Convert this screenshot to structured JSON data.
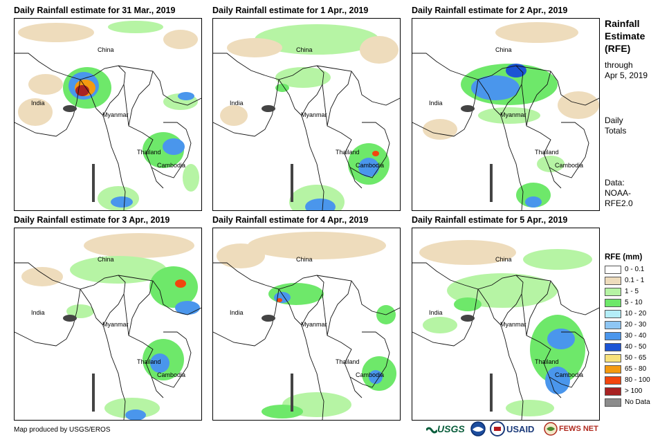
{
  "panels": [
    {
      "title": "Daily Rainfall estimate for 31 Mar., 2019"
    },
    {
      "title": "Daily Rainfall estimate for 1 Apr., 2019"
    },
    {
      "title": "Daily Rainfall estimate for 2 Apr., 2019"
    },
    {
      "title": "Daily Rainfall estimate for 3 Apr., 2019"
    },
    {
      "title": "Daily Rainfall estimate for 4 Apr., 2019"
    },
    {
      "title": "Daily Rainfall estimate for 5 Apr., 2019"
    }
  ],
  "places": {
    "china": "China",
    "india": "India",
    "myanmar": "Myanmar",
    "thailand": "Thailand",
    "cambodia": "Cambodia"
  },
  "sidebar": {
    "title_line1": "Rainfall",
    "title_line2": "Estimate",
    "title_line3": "(RFE)",
    "through_line1": "through",
    "through_line2": "Apr 5, 2019",
    "totals_line1": "Daily",
    "totals_line2": "Totals",
    "data_line1": "Data:",
    "data_line2": "NOAA-",
    "data_line3": "RFE2.0"
  },
  "legend": {
    "title": "RFE (mm)",
    "items": [
      {
        "label": "0 - 0.1",
        "color": "#ffffff"
      },
      {
        "label": "0.1 - 1",
        "color": "#eedcbc"
      },
      {
        "label": "1 - 5",
        "color": "#b6f4a4"
      },
      {
        "label": "5 - 10",
        "color": "#6ee86a"
      },
      {
        "label": "10 - 20",
        "color": "#b4eef8"
      },
      {
        "label": "20 - 30",
        "color": "#8ec6f4"
      },
      {
        "label": "30 - 40",
        "color": "#4a96ec"
      },
      {
        "label": "40 - 50",
        "color": "#1c54d4"
      },
      {
        "label": "50 - 65",
        "color": "#f8e27c"
      },
      {
        "label": "65 - 80",
        "color": "#f49a10"
      },
      {
        "label": "80 - 100",
        "color": "#f2460e"
      },
      {
        "label": "> 100",
        "color": "#a82222"
      },
      {
        "label": "No Data",
        "color": "#8c8c8c"
      }
    ]
  },
  "footer": {
    "credit": "Map produced by USGS/EROS",
    "logos": {
      "usgs": "USGS",
      "usaid": "USAID",
      "fewsnet": "FEWS NET"
    }
  }
}
